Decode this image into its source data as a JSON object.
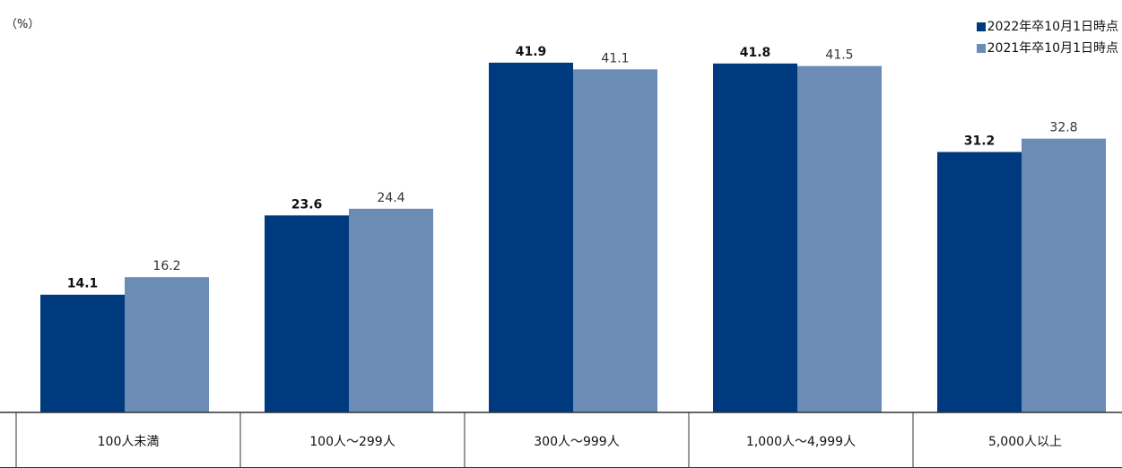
{
  "chart_data": {
    "type": "bar",
    "unit_label": "（%）",
    "categories": [
      "100人未満",
      "100人～299人",
      "300人～999人",
      "1,000人～4,999人",
      "5,000人以上"
    ],
    "series": [
      {
        "name": "2022年卒10月1日時点",
        "values": [
          14.1,
          23.6,
          41.9,
          41.8,
          31.2
        ],
        "labels": [
          "14.1",
          "23.6",
          "41.9",
          "41.8",
          "31.2"
        ],
        "color": "#003a7e",
        "label_bold": true
      },
      {
        "name": "2021年卒10月1日時点",
        "values": [
          16.2,
          24.4,
          41.1,
          41.5,
          32.8
        ],
        "labels": [
          "16.2",
          "24.4",
          "41.1",
          "41.5",
          "32.8"
        ],
        "color": "#6a8cb5",
        "label_bold": false
      }
    ],
    "ylim": [
      0,
      48
    ],
    "grid": false,
    "legend_position": "top-right",
    "category_table": true
  }
}
